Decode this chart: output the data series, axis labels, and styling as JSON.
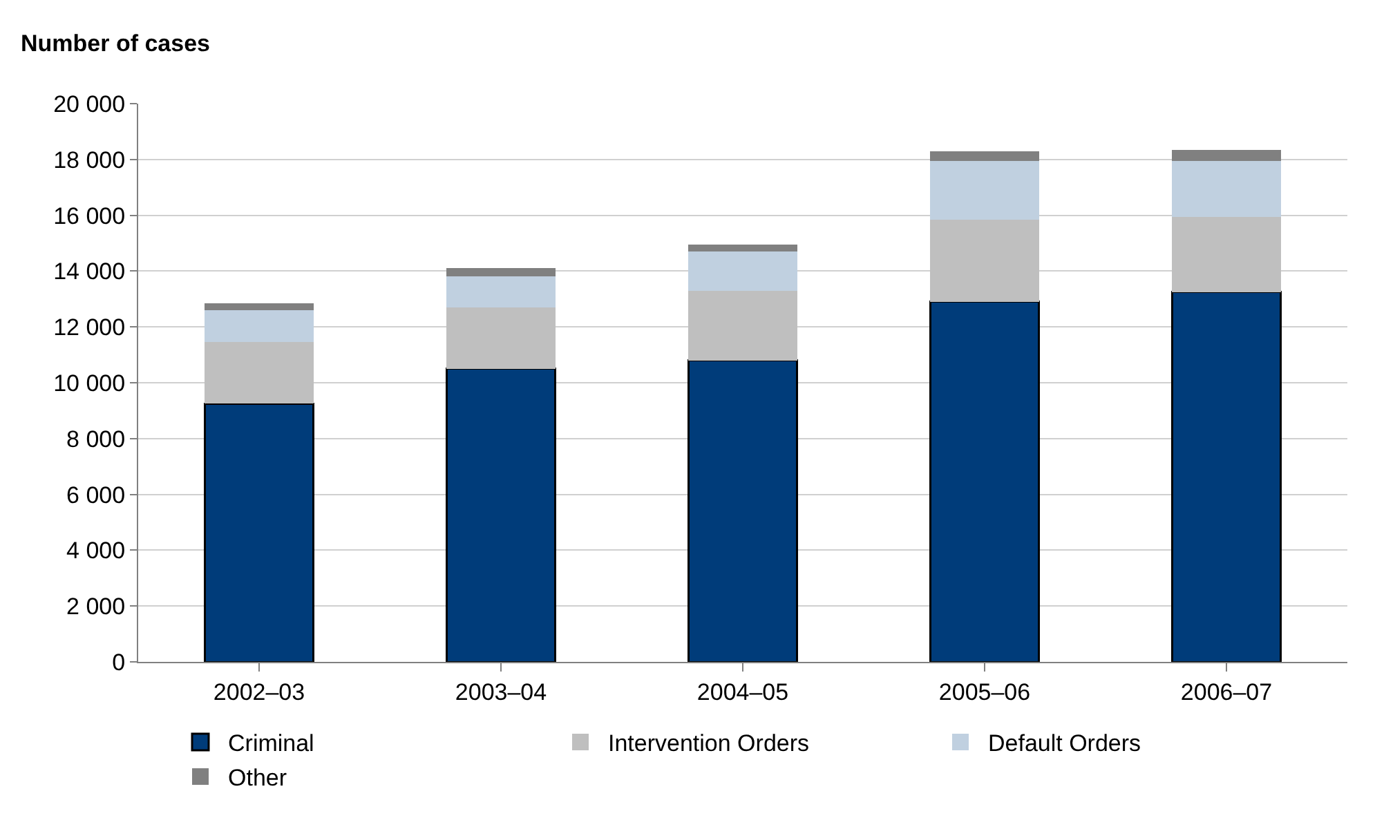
{
  "chart_data": {
    "type": "bar",
    "stacked": true,
    "ylabel": "Number of cases",
    "categories": [
      "2002–03",
      "2003–04",
      "2004–05",
      "2005–06",
      "2006–07"
    ],
    "series": [
      {
        "name": "Criminal",
        "color": "#003c7a",
        "values": [
          9250,
          10500,
          10800,
          12900,
          13250
        ]
      },
      {
        "name": "Intervention Orders",
        "color": "#bfbfbf",
        "values": [
          2200,
          2200,
          2500,
          2950,
          2700
        ]
      },
      {
        "name": "Default Orders",
        "color": "#c0d0e0",
        "values": [
          1150,
          1100,
          1400,
          2100,
          2000
        ]
      },
      {
        "name": "Other",
        "color": "#808080",
        "values": [
          250,
          300,
          250,
          350,
          400
        ]
      }
    ],
    "ylim": [
      0,
      20000
    ],
    "yticks": [
      0,
      {
        "value": 2000,
        "label": "2 000"
      },
      {
        "value": 4000,
        "label": "4 000"
      },
      {
        "value": 6000,
        "label": "6 000"
      },
      {
        "value": 8000,
        "label": "8 000"
      },
      {
        "value": 10000,
        "label": "10 000"
      },
      {
        "value": 12000,
        "label": "12 000"
      },
      {
        "value": 14000,
        "label": "14 000"
      },
      {
        "value": 16000,
        "label": "16 000"
      },
      {
        "value": 18000,
        "label": "18 000"
      },
      {
        "value": 20000,
        "label": "20 000"
      }
    ],
    "grid": "y",
    "legend": "bottom"
  }
}
